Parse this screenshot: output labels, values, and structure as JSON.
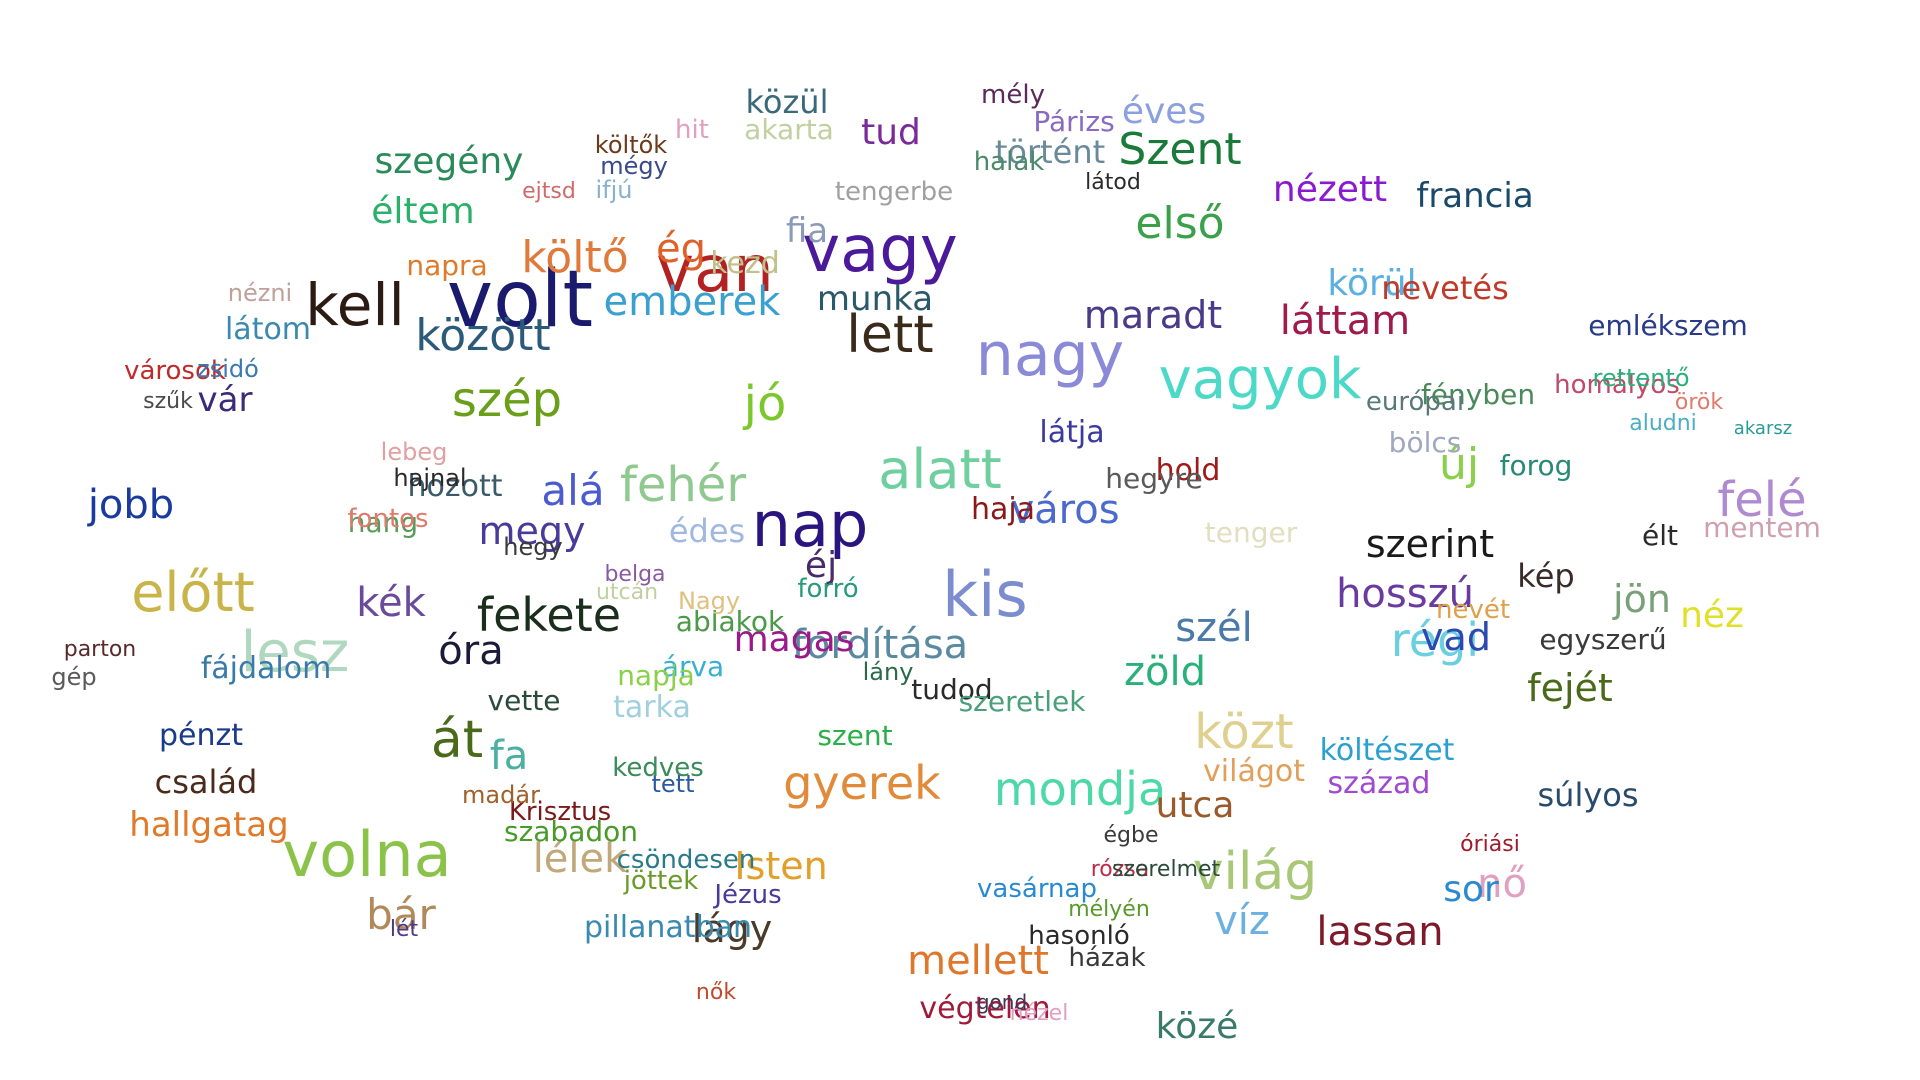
{
  "words": [
    {
      "text": "volt",
      "color": "#1a1a6e"
    },
    {
      "text": "van",
      "color": "#b22222"
    },
    {
      "text": "vagy",
      "color": "#4b1a9a"
    },
    {
      "text": "nagy",
      "color": "#8a8ad8"
    },
    {
      "text": "kell",
      "color": "#2b1b12"
    },
    {
      "text": "lett",
      "color": "#3a2a1a"
    },
    {
      "text": "vagyok",
      "color": "#4dd9c7"
    },
    {
      "text": "nap",
      "color": "#2a1580"
    },
    {
      "text": "alatt",
      "color": "#6fcf9f"
    },
    {
      "text": "volna",
      "color": "#8bc34a"
    },
    {
      "text": "kis",
      "color": "#7b8ccf"
    },
    {
      "text": "fekete",
      "color": "#1b2d1b"
    },
    {
      "text": "lesz",
      "color": "#b0d8c0"
    },
    {
      "text": "előtt",
      "color": "#c9b44a"
    },
    {
      "text": "szép",
      "color": "#6a9f1a"
    },
    {
      "text": "között",
      "color": "#2b5a7a"
    },
    {
      "text": "jó",
      "color": "#7cc82c"
    },
    {
      "text": "fehér",
      "color": "#8fc98f"
    },
    {
      "text": "hosszú",
      "color": "#6a3aa0"
    },
    {
      "text": "közt",
      "color": "#e0d090"
    },
    {
      "text": "világ",
      "color": "#a8c878"
    },
    {
      "text": "gyerek",
      "color": "#e08a3a"
    },
    {
      "text": "mondja",
      "color": "#4dd9a7"
    },
    {
      "text": "mellett",
      "color": "#e0762a"
    },
    {
      "text": "lassan",
      "color": "#7a1a2a"
    },
    {
      "text": "emberek",
      "color": "#3aa0d0"
    },
    {
      "text": "Szent",
      "color": "#1a7a3a"
    },
    {
      "text": "első",
      "color": "#3aa04a"
    },
    {
      "text": "láttam",
      "color": "#a01a4a"
    },
    {
      "text": "maradt",
      "color": "#4a3a8a"
    },
    {
      "text": "szerint",
      "color": "#1a1a1a"
    },
    {
      "text": "régi",
      "color": "#6ad0e0"
    },
    {
      "text": "új",
      "color": "#8ad04a"
    },
    {
      "text": "város",
      "color": "#4a6ad0"
    },
    {
      "text": "felé",
      "color": "#b08ad0"
    },
    {
      "text": "fordítása",
      "color": "#5a8aa0"
    },
    {
      "text": "magas",
      "color": "#9a1a8a"
    },
    {
      "text": "szél",
      "color": "#4a7aaa"
    },
    {
      "text": "zöld",
      "color": "#2ab07a"
    },
    {
      "text": "költő",
      "color": "#e07a3a"
    },
    {
      "text": "ég",
      "color": "#e0602a"
    },
    {
      "text": "közül",
      "color": "#3a6a7a"
    },
    {
      "text": "tud",
      "color": "#7a2a9a"
    },
    {
      "text": "történt",
      "color": "#6a8a9a"
    },
    {
      "text": "éves",
      "color": "#8aa0e0"
    },
    {
      "text": "nézett",
      "color": "#8a1ad0"
    },
    {
      "text": "francia",
      "color": "#1a4a6a"
    },
    {
      "text": "szegény",
      "color": "#2a8a5a"
    },
    {
      "text": "éltem",
      "color": "#2ab06a"
    },
    {
      "text": "körül",
      "color": "#5ab0e0"
    },
    {
      "text": "nevetés",
      "color": "#c03a2a"
    },
    {
      "text": "munka",
      "color": "#2a5a6a"
    },
    {
      "text": "fia",
      "color": "#8a9aba"
    },
    {
      "text": "kezd",
      "color": "#c0c08a"
    },
    {
      "text": "át",
      "color": "#4a6a1a"
    },
    {
      "text": "fa",
      "color": "#4ab0a0"
    },
    {
      "text": "óra",
      "color": "#1a1a3a"
    },
    {
      "text": "kék",
      "color": "#6a4a9a"
    },
    {
      "text": "jobb",
      "color": "#1a3aa0"
    },
    {
      "text": "bár",
      "color": "#b08a5a"
    },
    {
      "text": "lélek",
      "color": "#c0a87a"
    },
    {
      "text": "Isten",
      "color": "#e0a02a"
    },
    {
      "text": "lágy",
      "color": "#4a3a2a"
    },
    {
      "text": "víz",
      "color": "#6ab0e0"
    },
    {
      "text": "nő",
      "color": "#e0a0c0"
    },
    {
      "text": "sor",
      "color": "#2a8ad0"
    },
    {
      "text": "utca",
      "color": "#9a5a2a"
    },
    {
      "text": "közé",
      "color": "#3a7a6a"
    },
    {
      "text": "végtelen",
      "color": "#a01a3a"
    },
    {
      "text": "jön",
      "color": "#7aa07a"
    },
    {
      "text": "néz",
      "color": "#e0e02a"
    },
    {
      "text": "vad",
      "color": "#2a4ab0"
    },
    {
      "text": "kép",
      "color": "#3a2a2a"
    },
    {
      "text": "élt",
      "color": "#2a2a2a"
    },
    {
      "text": "mentem",
      "color": "#d0a0b0"
    },
    {
      "text": "fejét",
      "color": "#4a6a1a"
    },
    {
      "text": "súlyos",
      "color": "#2a4a6a"
    },
    {
      "text": "költészet",
      "color": "#2aa0d0"
    },
    {
      "text": "század",
      "color": "#a04ad0"
    },
    {
      "text": "világot",
      "color": "#e0a05a"
    },
    {
      "text": "hallgatag",
      "color": "#e07a2a"
    },
    {
      "text": "család",
      "color": "#4a2a1a"
    },
    {
      "text": "pénzt",
      "color": "#1a3a8a"
    },
    {
      "text": "fájdalom",
      "color": "#3a7aaa"
    },
    {
      "text": "vár",
      "color": "#3a2a7a"
    },
    {
      "text": "látom",
      "color": "#3a8ab0"
    },
    {
      "text": "napra",
      "color": "#e07a2a"
    },
    {
      "text": "hozott",
      "color": "#3a5a6a"
    },
    {
      "text": "hang",
      "color": "#5a9a5a"
    },
    {
      "text": "alá",
      "color": "#4a5ad0"
    },
    {
      "text": "megy",
      "color": "#4a3a9a"
    },
    {
      "text": "édes",
      "color": "#a0b8e0"
    },
    {
      "text": "éj",
      "color": "#4a2a6a"
    },
    {
      "text": "hold",
      "color": "#a01a1a"
    },
    {
      "text": "látja",
      "color": "#3a3aa0"
    },
    {
      "text": "haja",
      "color": "#8a1a1a"
    },
    {
      "text": "tenger",
      "color": "#e0e0c0"
    },
    {
      "text": "hegyre",
      "color": "#5a5a5a"
    },
    {
      "text": "bölcs",
      "color": "#a0a8c0"
    },
    {
      "text": "fényben",
      "color": "#4a8a5a"
    },
    {
      "text": "európai",
      "color": "#5a7a7a"
    },
    {
      "text": "forog",
      "color": "#2a8a7a"
    },
    {
      "text": "emlékszem",
      "color": "#2a3a8a"
    },
    {
      "text": "homályos",
      "color": "#c04a6a"
    },
    {
      "text": "nevét",
      "color": "#e0a04a"
    },
    {
      "text": "egyszerű",
      "color": "#3a3a3a"
    },
    {
      "text": "szent",
      "color": "#2ab04a"
    },
    {
      "text": "tudod",
      "color": "#2a2a2a"
    },
    {
      "text": "szeretlek",
      "color": "#4aa07a"
    },
    {
      "text": "lány",
      "color": "#2a6a4a"
    },
    {
      "text": "tett",
      "color": "#2a5aa0"
    },
    {
      "text": "Krisztus",
      "color": "#7a1a1a"
    },
    {
      "text": "szabadon",
      "color": "#4a9a2a"
    },
    {
      "text": "csöndesen",
      "color": "#2a7a8a"
    },
    {
      "text": "vasárnap",
      "color": "#2a8ad0"
    },
    {
      "text": "pillanatban",
      "color": "#3a8ab0"
    },
    {
      "text": "hasonló",
      "color": "#2a2a2a"
    },
    {
      "text": "házak",
      "color": "#3a3a3a"
    },
    {
      "text": "Jézus",
      "color": "#4a3a9a"
    },
    {
      "text": "jöttek",
      "color": "#6a9a2a"
    },
    {
      "text": "kedves",
      "color": "#3a8a5a"
    },
    {
      "text": "árva",
      "color": "#3ab0d0"
    },
    {
      "text": "ablakok",
      "color": "#4a9a4a"
    },
    {
      "text": "Nagy",
      "color": "#e0c080"
    },
    {
      "text": "tarka",
      "color": "#a0d0e0"
    },
    {
      "text": "vette",
      "color": "#2a4a3a"
    },
    {
      "text": "napja",
      "color": "#8ad04a"
    },
    {
      "text": "forró",
      "color": "#2a9a7a"
    },
    {
      "text": "mély",
      "color": "#5a2a5a"
    },
    {
      "text": "Párizs",
      "color": "#8a6ac0"
    },
    {
      "text": "hit",
      "color": "#e0a0c0"
    },
    {
      "text": "akarta",
      "color": "#c0d0a0"
    },
    {
      "text": "költők",
      "color": "#6a3a1a"
    },
    {
      "text": "tengerbe",
      "color": "#a0a0a0"
    },
    {
      "text": "halak",
      "color": "#4a8a6a"
    },
    {
      "text": "látod",
      "color": "#2a2a2a"
    },
    {
      "text": "mégy",
      "color": "#3a4a8a"
    },
    {
      "text": "ifjú",
      "color": "#8ab0d0"
    },
    {
      "text": "ejtsd",
      "color": "#d06a6a"
    },
    {
      "text": "fontos",
      "color": "#e07a6a"
    },
    {
      "text": "hajnal",
      "color": "#2a2a2a"
    },
    {
      "text": "lebeg",
      "color": "#e0a0a0"
    },
    {
      "text": "hegy",
      "color": "#3a3a3a"
    },
    {
      "text": "belga",
      "color": "#8a5aa0"
    },
    {
      "text": "utcán",
      "color": "#c0d0a0"
    },
    {
      "text": "nézni",
      "color": "#c0a09a"
    },
    {
      "text": "városok",
      "color": "#c02a2a"
    },
    {
      "text": "zsidó",
      "color": "#3a7ab0"
    },
    {
      "text": "szűk",
      "color": "#4a4a4a"
    },
    {
      "text": "parton",
      "color": "#5a2a2a"
    },
    {
      "text": "gép",
      "color": "#5a5a5a"
    },
    {
      "text": "madár",
      "color": "#a0602a"
    },
    {
      "text": "égbe",
      "color": "#3a3a3a"
    },
    {
      "text": "rózsa",
      "color": "#c02a4a"
    },
    {
      "text": "szerelmet",
      "color": "#2a4a3a"
    },
    {
      "text": "óriási",
      "color": "#a01a2a"
    },
    {
      "text": "rettentő",
      "color": "#2ab07a"
    },
    {
      "text": "örök",
      "color": "#e07a6a"
    },
    {
      "text": "aludni",
      "color": "#4ab0c0"
    },
    {
      "text": "akarsz",
      "color": "#2a9a9a"
    },
    {
      "text": "lét",
      "color": "#4a3a8a"
    },
    {
      "text": "mélyén",
      "color": "#5a9a2a"
    },
    {
      "text": "nők",
      "color": "#c04a2a"
    },
    {
      "text": "nézel",
      "color": "#e0a0c0"
    },
    {
      "text": "gond",
      "color": "#3a3a5a"
    }
  ]
}
